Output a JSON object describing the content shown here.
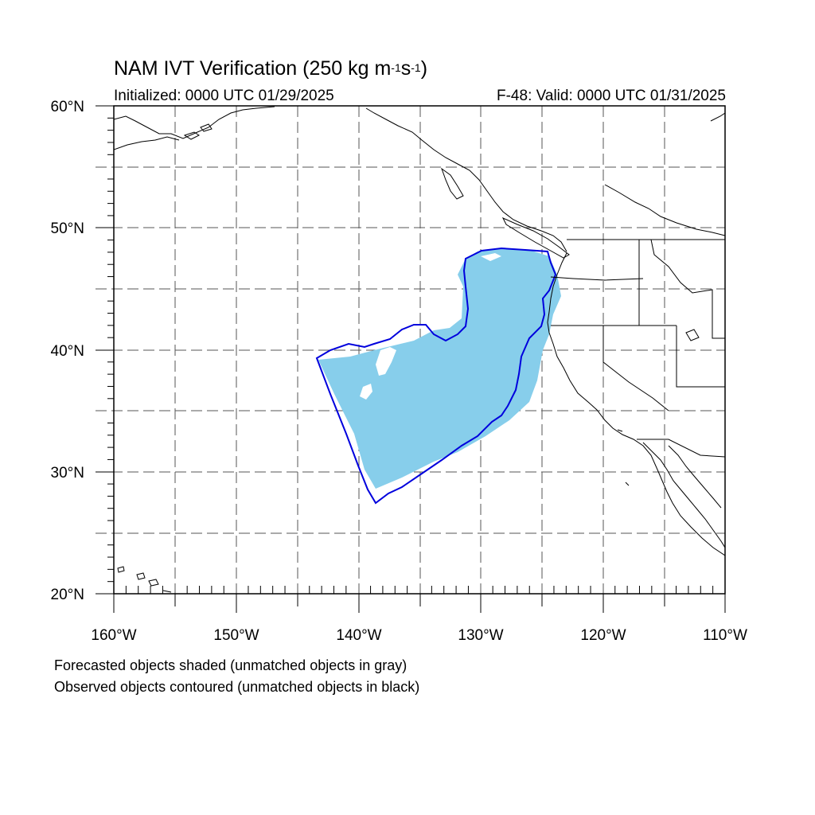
{
  "map": {
    "title": {
      "main": "NAM IVT Verification (250 kg m",
      "exp1": "-1",
      "mid": "s",
      "exp2": "-1",
      "close": ")"
    },
    "initialized": "Initialized: 0000 UTC 01/29/2025",
    "valid": "F-48: Valid: 0000 UTC 01/31/2025",
    "notes": [
      "Forecasted objects shaded (unmatched objects in gray)",
      "Observed objects contoured (unmatched objects in black)"
    ],
    "lon_labels": [
      "160°W",
      "150°W",
      "140°W",
      "130°W",
      "120°W",
      "110°W"
    ],
    "lat_labels": [
      "60°N",
      "50°N",
      "40°N",
      "30°N",
      "20°N"
    ],
    "extent": {
      "lon_min": -160,
      "lon_max": -110,
      "lat_min": 20,
      "lat_max": 60
    },
    "colors": {
      "forecast_fill": "#87CEEB",
      "observed_contour": "#0000DD",
      "coast": "#000000",
      "grid": "#555555"
    }
  }
}
